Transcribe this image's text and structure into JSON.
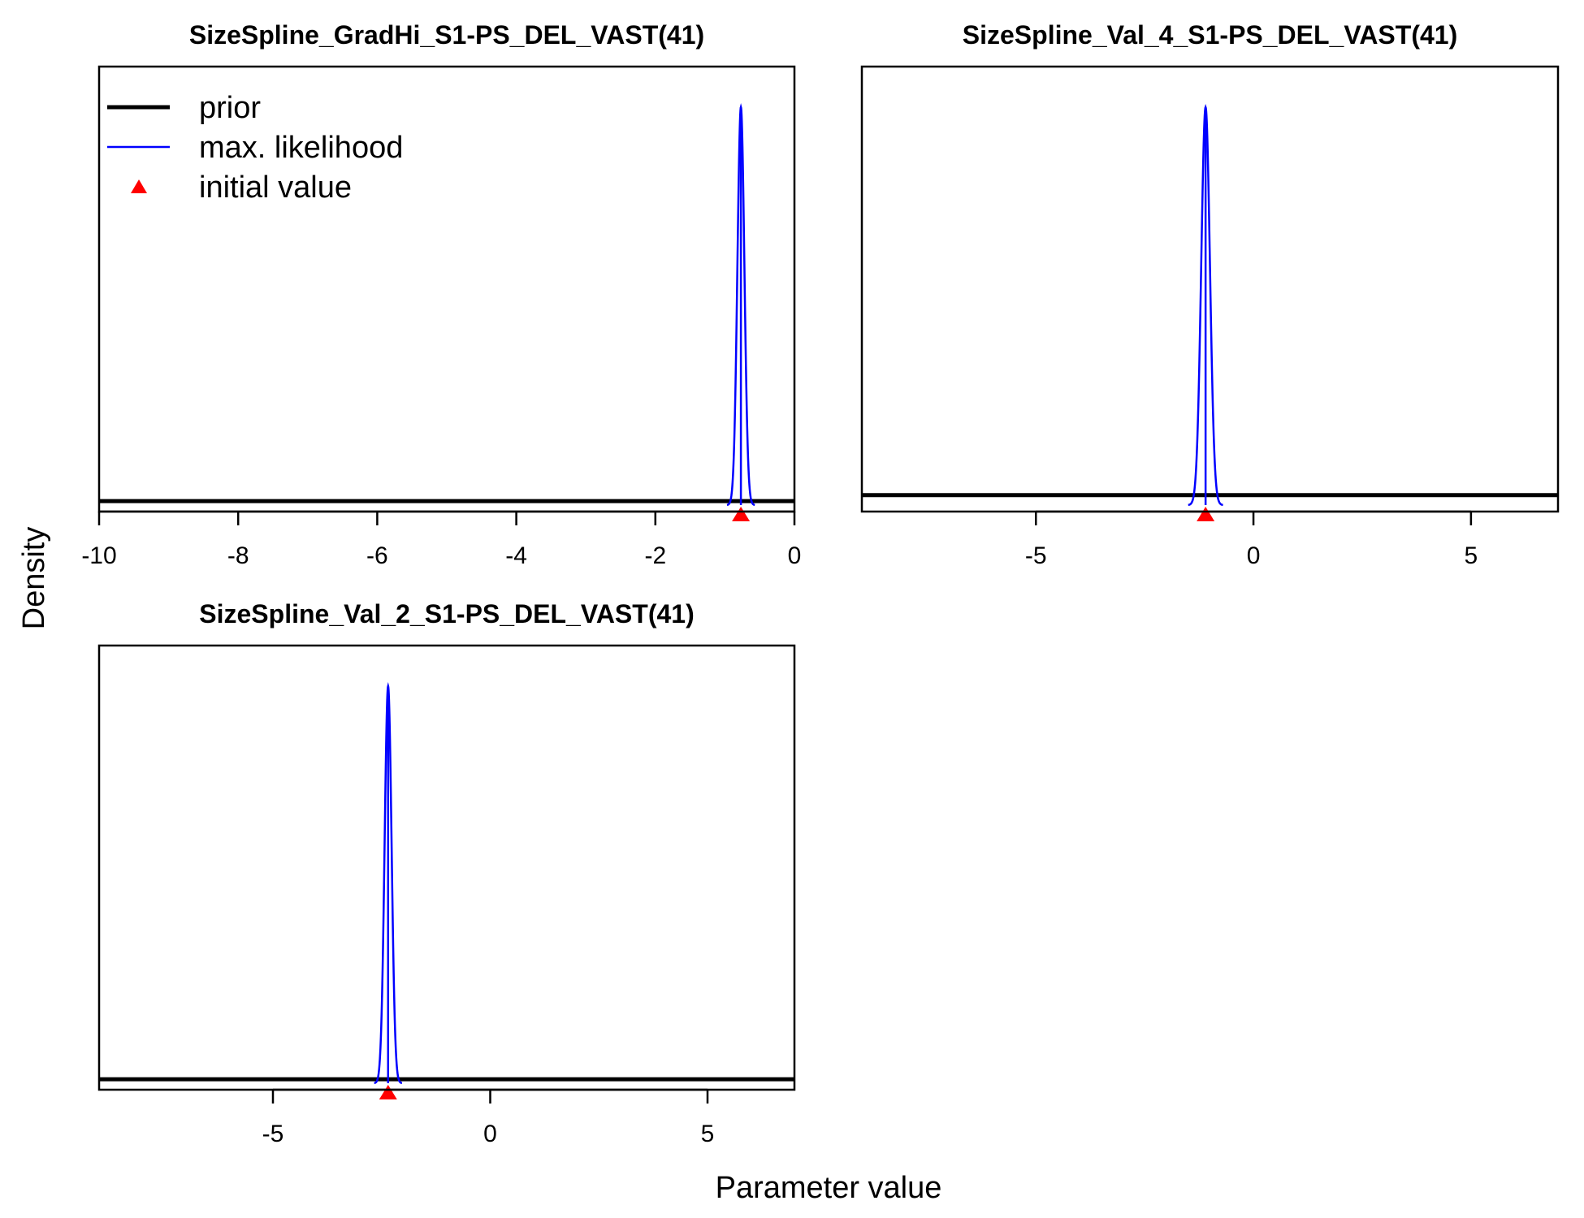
{
  "ylabel": "Density",
  "xlabel": "Parameter value",
  "legend": {
    "placement": "top-left of first panel",
    "items": [
      {
        "label": "prior",
        "kind": "line-thick",
        "color": "#000000"
      },
      {
        "label": "max. likelihood",
        "kind": "line-thin",
        "color": "#0000ff"
      },
      {
        "label": "initial value",
        "kind": "triangle",
        "color": "#ff0000"
      }
    ]
  },
  "colors": {
    "prior": "#000000",
    "max_likelihood": "#0000ff",
    "initial_value": "#ff0000"
  },
  "chart_data": [
    {
      "type": "line",
      "title": "SizeSpline_GradHi_S1-PS_DEL_VAST(41)",
      "xlim": [
        -10,
        0
      ],
      "ticks": [
        -10,
        -8,
        -6,
        -4,
        -2,
        0
      ],
      "tick_labels": [
        "-10",
        "-8",
        "-6",
        "-4",
        "-2",
        "0"
      ],
      "prior_level": 0.01,
      "ml_mean": -0.77,
      "ml_sd": 0.05,
      "initial_value": -0.77
    },
    {
      "type": "line",
      "title": "SizeSpline_Val_4_S1-PS_DEL_VAST(41)",
      "xlim": [
        -9,
        7
      ],
      "ticks": [
        -5,
        0,
        5
      ],
      "tick_labels": [
        "-5",
        "0",
        "5"
      ],
      "prior_level": 0.025,
      "ml_mean": -1.1,
      "ml_sd": 0.1,
      "initial_value": -1.1
    },
    {
      "type": "line",
      "title": "SizeSpline_Val_2_S1-PS_DEL_VAST(41)",
      "xlim": [
        -9,
        7
      ],
      "ticks": [
        -5,
        0,
        5
      ],
      "tick_labels": [
        "-5",
        "0",
        "5"
      ],
      "prior_level": 0.01,
      "ml_mean": -2.35,
      "ml_sd": 0.08,
      "initial_value": -2.35
    }
  ]
}
